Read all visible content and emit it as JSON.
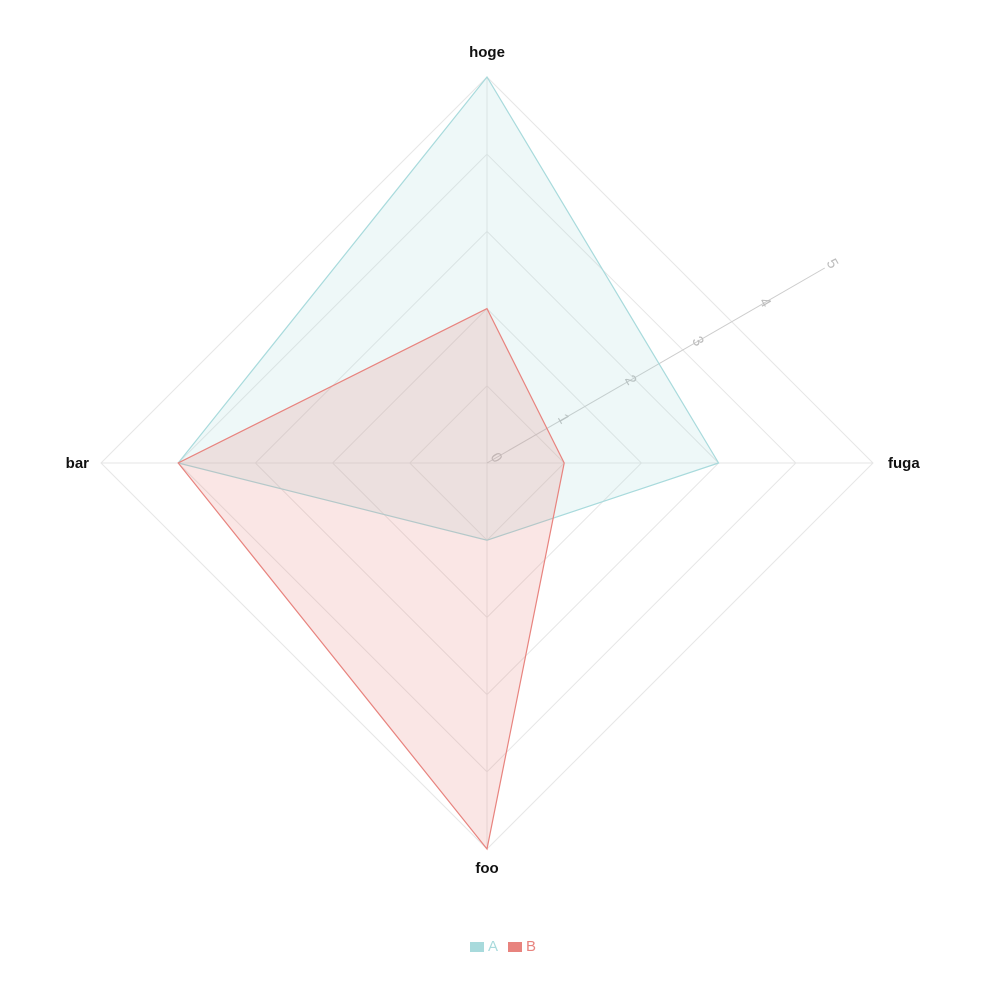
{
  "chart_data": {
    "type": "radar",
    "axes": [
      "hoge",
      "fuga",
      "foo",
      "bar"
    ],
    "range": [
      0,
      5
    ],
    "ticks": [
      "0",
      "1",
      "2",
      "3",
      "4",
      "5"
    ],
    "series": [
      {
        "name": "A",
        "values": [
          5,
          3,
          1,
          4
        ],
        "color": "#a8dadc"
      },
      {
        "name": "B",
        "values": [
          2,
          1,
          5,
          4
        ],
        "color": "#e8837e"
      }
    ],
    "legend_position": "bottom-center",
    "grid": true
  }
}
